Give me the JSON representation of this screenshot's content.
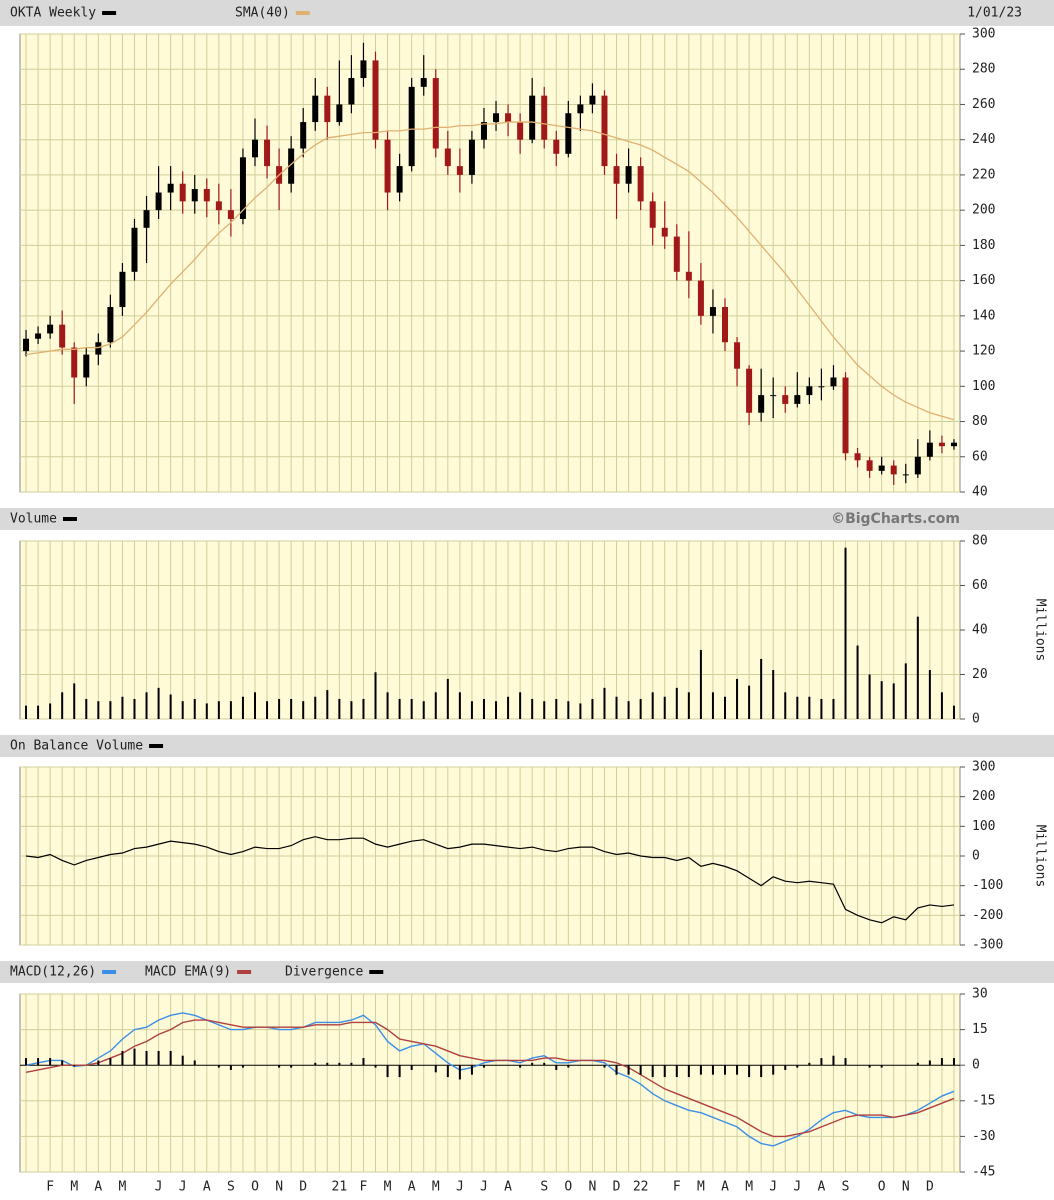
{
  "chart_data": [
    {
      "type": "candlestick",
      "title": "OKTA Weekly",
      "date": "1/01/23",
      "up_color": "#000000",
      "down_color": "#a01818",
      "ohlc": [
        [
          120,
          132,
          117,
          127
        ],
        [
          127,
          134,
          124,
          130
        ],
        [
          130,
          140,
          127,
          135
        ],
        [
          135,
          143,
          118,
          122
        ],
        [
          122,
          125,
          90,
          105
        ],
        [
          105,
          122,
          100,
          118
        ],
        [
          118,
          130,
          112,
          125
        ],
        [
          125,
          152,
          122,
          145
        ],
        [
          145,
          170,
          140,
          165
        ],
        [
          165,
          195,
          160,
          190
        ],
        [
          190,
          208,
          170,
          200
        ],
        [
          200,
          225,
          195,
          210
        ],
        [
          210,
          225,
          200,
          215
        ],
        [
          215,
          222,
          198,
          205
        ],
        [
          205,
          220,
          198,
          212
        ],
        [
          212,
          218,
          196,
          205
        ],
        [
          205,
          215,
          192,
          200
        ],
        [
          200,
          212,
          185,
          195
        ],
        [
          195,
          235,
          192,
          230
        ],
        [
          230,
          252,
          225,
          240
        ],
        [
          240,
          248,
          218,
          225
        ],
        [
          225,
          235,
          200,
          215
        ],
        [
          215,
          242,
          210,
          235
        ],
        [
          235,
          258,
          230,
          250
        ],
        [
          250,
          275,
          245,
          265
        ],
        [
          265,
          270,
          240,
          250
        ],
        [
          250,
          285,
          248,
          260
        ],
        [
          260,
          288,
          255,
          275
        ],
        [
          275,
          295,
          270,
          285
        ],
        [
          285,
          290,
          235,
          240
        ],
        [
          240,
          245,
          200,
          210
        ],
        [
          210,
          232,
          205,
          225
        ],
        [
          225,
          275,
          222,
          270
        ],
        [
          270,
          288,
          265,
          275
        ],
        [
          275,
          280,
          230,
          235
        ],
        [
          235,
          245,
          220,
          225
        ],
        [
          225,
          235,
          210,
          220
        ],
        [
          220,
          245,
          215,
          240
        ],
        [
          240,
          258,
          235,
          250
        ],
        [
          250,
          262,
          245,
          255
        ],
        [
          255,
          260,
          242,
          250
        ],
        [
          250,
          255,
          232,
          240
        ],
        [
          240,
          275,
          238,
          265
        ],
        [
          265,
          270,
          235,
          240
        ],
        [
          240,
          245,
          225,
          232
        ],
        [
          232,
          262,
          230,
          255
        ],
        [
          255,
          265,
          245,
          260
        ],
        [
          260,
          272,
          255,
          265
        ],
        [
          265,
          268,
          220,
          225
        ],
        [
          225,
          232,
          195,
          215
        ],
        [
          215,
          235,
          210,
          225
        ],
        [
          225,
          230,
          200,
          205
        ],
        [
          205,
          210,
          180,
          190
        ],
        [
          190,
          205,
          178,
          185
        ],
        [
          185,
          192,
          160,
          165
        ],
        [
          165,
          188,
          150,
          160
        ],
        [
          160,
          170,
          135,
          140
        ],
        [
          140,
          155,
          130,
          145
        ],
        [
          145,
          150,
          120,
          125
        ],
        [
          125,
          128,
          100,
          110
        ],
        [
          110,
          112,
          78,
          85
        ],
        [
          85,
          110,
          80,
          95
        ],
        [
          95,
          105,
          82,
          95
        ],
        [
          95,
          100,
          85,
          90
        ],
        [
          90,
          108,
          88,
          95
        ],
        [
          95,
          105,
          90,
          100
        ],
        [
          100,
          110,
          92,
          100
        ],
        [
          100,
          112,
          98,
          105
        ],
        [
          105,
          108,
          58,
          62
        ],
        [
          62,
          65,
          54,
          58
        ],
        [
          58,
          60,
          48,
          52
        ],
        [
          52,
          60,
          50,
          55
        ],
        [
          55,
          58,
          44,
          50
        ],
        [
          50,
          56,
          45,
          50
        ],
        [
          50,
          70,
          48,
          60
        ],
        [
          60,
          75,
          58,
          68
        ],
        [
          68,
          72,
          62,
          66
        ],
        [
          66,
          70,
          64,
          68
        ]
      ],
      "series": [
        {
          "name": "SMA(40)",
          "color": "#e0b070",
          "values": [
            118,
            119,
            120,
            121,
            121,
            122,
            122,
            124,
            128,
            135,
            142,
            150,
            158,
            165,
            172,
            180,
            187,
            193,
            200,
            207,
            213,
            220,
            226,
            232,
            237,
            241,
            242,
            243,
            244,
            244,
            245,
            245,
            246,
            246,
            247,
            247,
            248,
            248,
            249,
            249,
            250,
            250,
            250,
            249,
            248,
            247,
            246,
            245,
            243,
            241,
            239,
            237,
            234,
            230,
            226,
            222,
            216,
            210,
            203,
            196,
            188,
            180,
            172,
            164,
            155,
            146,
            137,
            128,
            120,
            112,
            106,
            100,
            95,
            91,
            88,
            85,
            83,
            81
          ]
        }
      ],
      "ylim": [
        40,
        300
      ],
      "yticks": [
        40,
        60,
        80,
        100,
        120,
        140,
        160,
        180,
        200,
        220,
        240,
        260,
        280,
        300
      ],
      "grid": true
    },
    {
      "type": "bar",
      "title": "Volume",
      "credit": "©BigCharts.com",
      "y_label": "Millions",
      "color": "#000000",
      "values": [
        6,
        6,
        7,
        12,
        16,
        9,
        8,
        8,
        10,
        9,
        12,
        14,
        11,
        8,
        9,
        7,
        8,
        8,
        10,
        12,
        8,
        9,
        9,
        8,
        10,
        13,
        9,
        8,
        9,
        21,
        12,
        9,
        9,
        8,
        12,
        18,
        12,
        8,
        9,
        8,
        10,
        12,
        9,
        8,
        9,
        8,
        7,
        9,
        14,
        10,
        8,
        9,
        12,
        10,
        14,
        12,
        31,
        12,
        10,
        18,
        15,
        27,
        22,
        12,
        10,
        10,
        9,
        9,
        77,
        33,
        20,
        17,
        16,
        25,
        46,
        22,
        12,
        6
      ],
      "ylim": [
        0,
        80
      ],
      "yticks": [
        0,
        20,
        40,
        60,
        80
      ],
      "grid": true
    },
    {
      "type": "line",
      "title": "On Balance Volume",
      "y_label": "Millions",
      "color": "#000000",
      "values": [
        0,
        -5,
        5,
        -15,
        -30,
        -15,
        -5,
        5,
        10,
        25,
        30,
        40,
        50,
        45,
        40,
        30,
        15,
        5,
        15,
        30,
        25,
        25,
        35,
        55,
        65,
        55,
        55,
        60,
        60,
        40,
        30,
        40,
        50,
        55,
        40,
        25,
        30,
        40,
        40,
        35,
        30,
        25,
        30,
        20,
        15,
        25,
        30,
        30,
        15,
        5,
        10,
        0,
        -5,
        -5,
        -15,
        -5,
        -35,
        -25,
        -35,
        -50,
        -75,
        -100,
        -70,
        -85,
        -90,
        -85,
        -90,
        -95,
        -180,
        -200,
        -215,
        -225,
        -205,
        -215,
        -175,
        -165,
        -170,
        -165
      ],
      "ylim": [
        -300,
        300
      ],
      "yticks": [
        -300,
        -200,
        -100,
        0,
        100,
        200,
        300
      ],
      "grid": true
    },
    {
      "type": "macd",
      "categories": [
        null,
        null,
        "F",
        null,
        "M",
        null,
        "A",
        null,
        "M",
        null,
        null,
        "J",
        null,
        "J",
        null,
        "A",
        null,
        "S",
        null,
        "O",
        null,
        "N",
        null,
        "D",
        null,
        null,
        "21",
        null,
        "F",
        null,
        "M",
        null,
        "A",
        null,
        "M",
        null,
        "J",
        null,
        "J",
        null,
        "A",
        null,
        null,
        "S",
        null,
        "O",
        null,
        "N",
        null,
        "D",
        null,
        "22",
        null,
        null,
        "F",
        null,
        "M",
        null,
        "A",
        null,
        "M",
        null,
        "J",
        null,
        "J",
        null,
        "A",
        null,
        "S",
        null,
        null,
        "O",
        null,
        "N",
        null,
        "D",
        null,
        null
      ],
      "series": [
        {
          "name": "MACD(12,26)",
          "color": "#3a8ee6",
          "values": [
            0,
            1,
            2,
            2,
            -0.5,
            0,
            3,
            6,
            11,
            15,
            16,
            19,
            21,
            22,
            21,
            19,
            17,
            15,
            15,
            16,
            16,
            15,
            15,
            16,
            18,
            18,
            18,
            19,
            21,
            17,
            10,
            6,
            8,
            9,
            5,
            1,
            -2,
            -1,
            1,
            2,
            2,
            1,
            3,
            4,
            1,
            1,
            2,
            2,
            1,
            -3,
            -5,
            -8,
            -12,
            -15,
            -17,
            -19,
            -20,
            -22,
            -24,
            -26,
            -30,
            -33,
            -34,
            -32,
            -30,
            -27,
            -23,
            -20,
            -19,
            -21,
            -22,
            -22,
            -22,
            -21,
            -19,
            -16,
            -13,
            -11
          ]
        },
        {
          "name": "MACD EMA(9)",
          "color": "#b04040",
          "values": [
            -3,
            -2,
            -1,
            0,
            0,
            0,
            1,
            3,
            5,
            8,
            10,
            13,
            15,
            18,
            19,
            19,
            18,
            17,
            16,
            16,
            16,
            16,
            16,
            16,
            17,
            17,
            17,
            18,
            18,
            18,
            15,
            11,
            10,
            9,
            8,
            6,
            4,
            3,
            2,
            2,
            2,
            2,
            2,
            3,
            3,
            2,
            2,
            2,
            2,
            1,
            -1,
            -4,
            -7,
            -10,
            -12,
            -14,
            -16,
            -18,
            -20,
            -22,
            -25,
            -28,
            -30,
            -30,
            -29,
            -28,
            -26,
            -24,
            -22,
            -21,
            -21,
            -21,
            -22,
            -21,
            -20,
            -18,
            -16,
            -14
          ]
        },
        {
          "name": "Divergence",
          "color": "#000000",
          "style": "bar",
          "values": [
            3,
            3,
            3,
            2,
            -0.5,
            0,
            2,
            3,
            6,
            7,
            6,
            6,
            6,
            4,
            2,
            0,
            -1,
            -2,
            -1,
            0,
            0,
            -1,
            -1,
            0,
            1,
            1,
            1,
            1,
            3,
            -1,
            -5,
            -5,
            -2,
            0,
            -3,
            -5,
            -6,
            -4,
            -1,
            0,
            0,
            -1,
            1,
            1,
            -2,
            -1,
            0,
            0,
            -1,
            -4,
            -4,
            -4,
            -5,
            -5,
            -5,
            -5,
            -4,
            -4,
            -4,
            -4,
            -5,
            -5,
            -4,
            -2,
            -1,
            1,
            3,
            4,
            3,
            0,
            -1,
            -1,
            0,
            0,
            1,
            2,
            3,
            3
          ]
        }
      ],
      "ylim": [
        -45,
        30
      ],
      "yticks": [
        -45,
        -30,
        -15,
        0,
        15,
        30
      ],
      "grid": true
    }
  ]
}
